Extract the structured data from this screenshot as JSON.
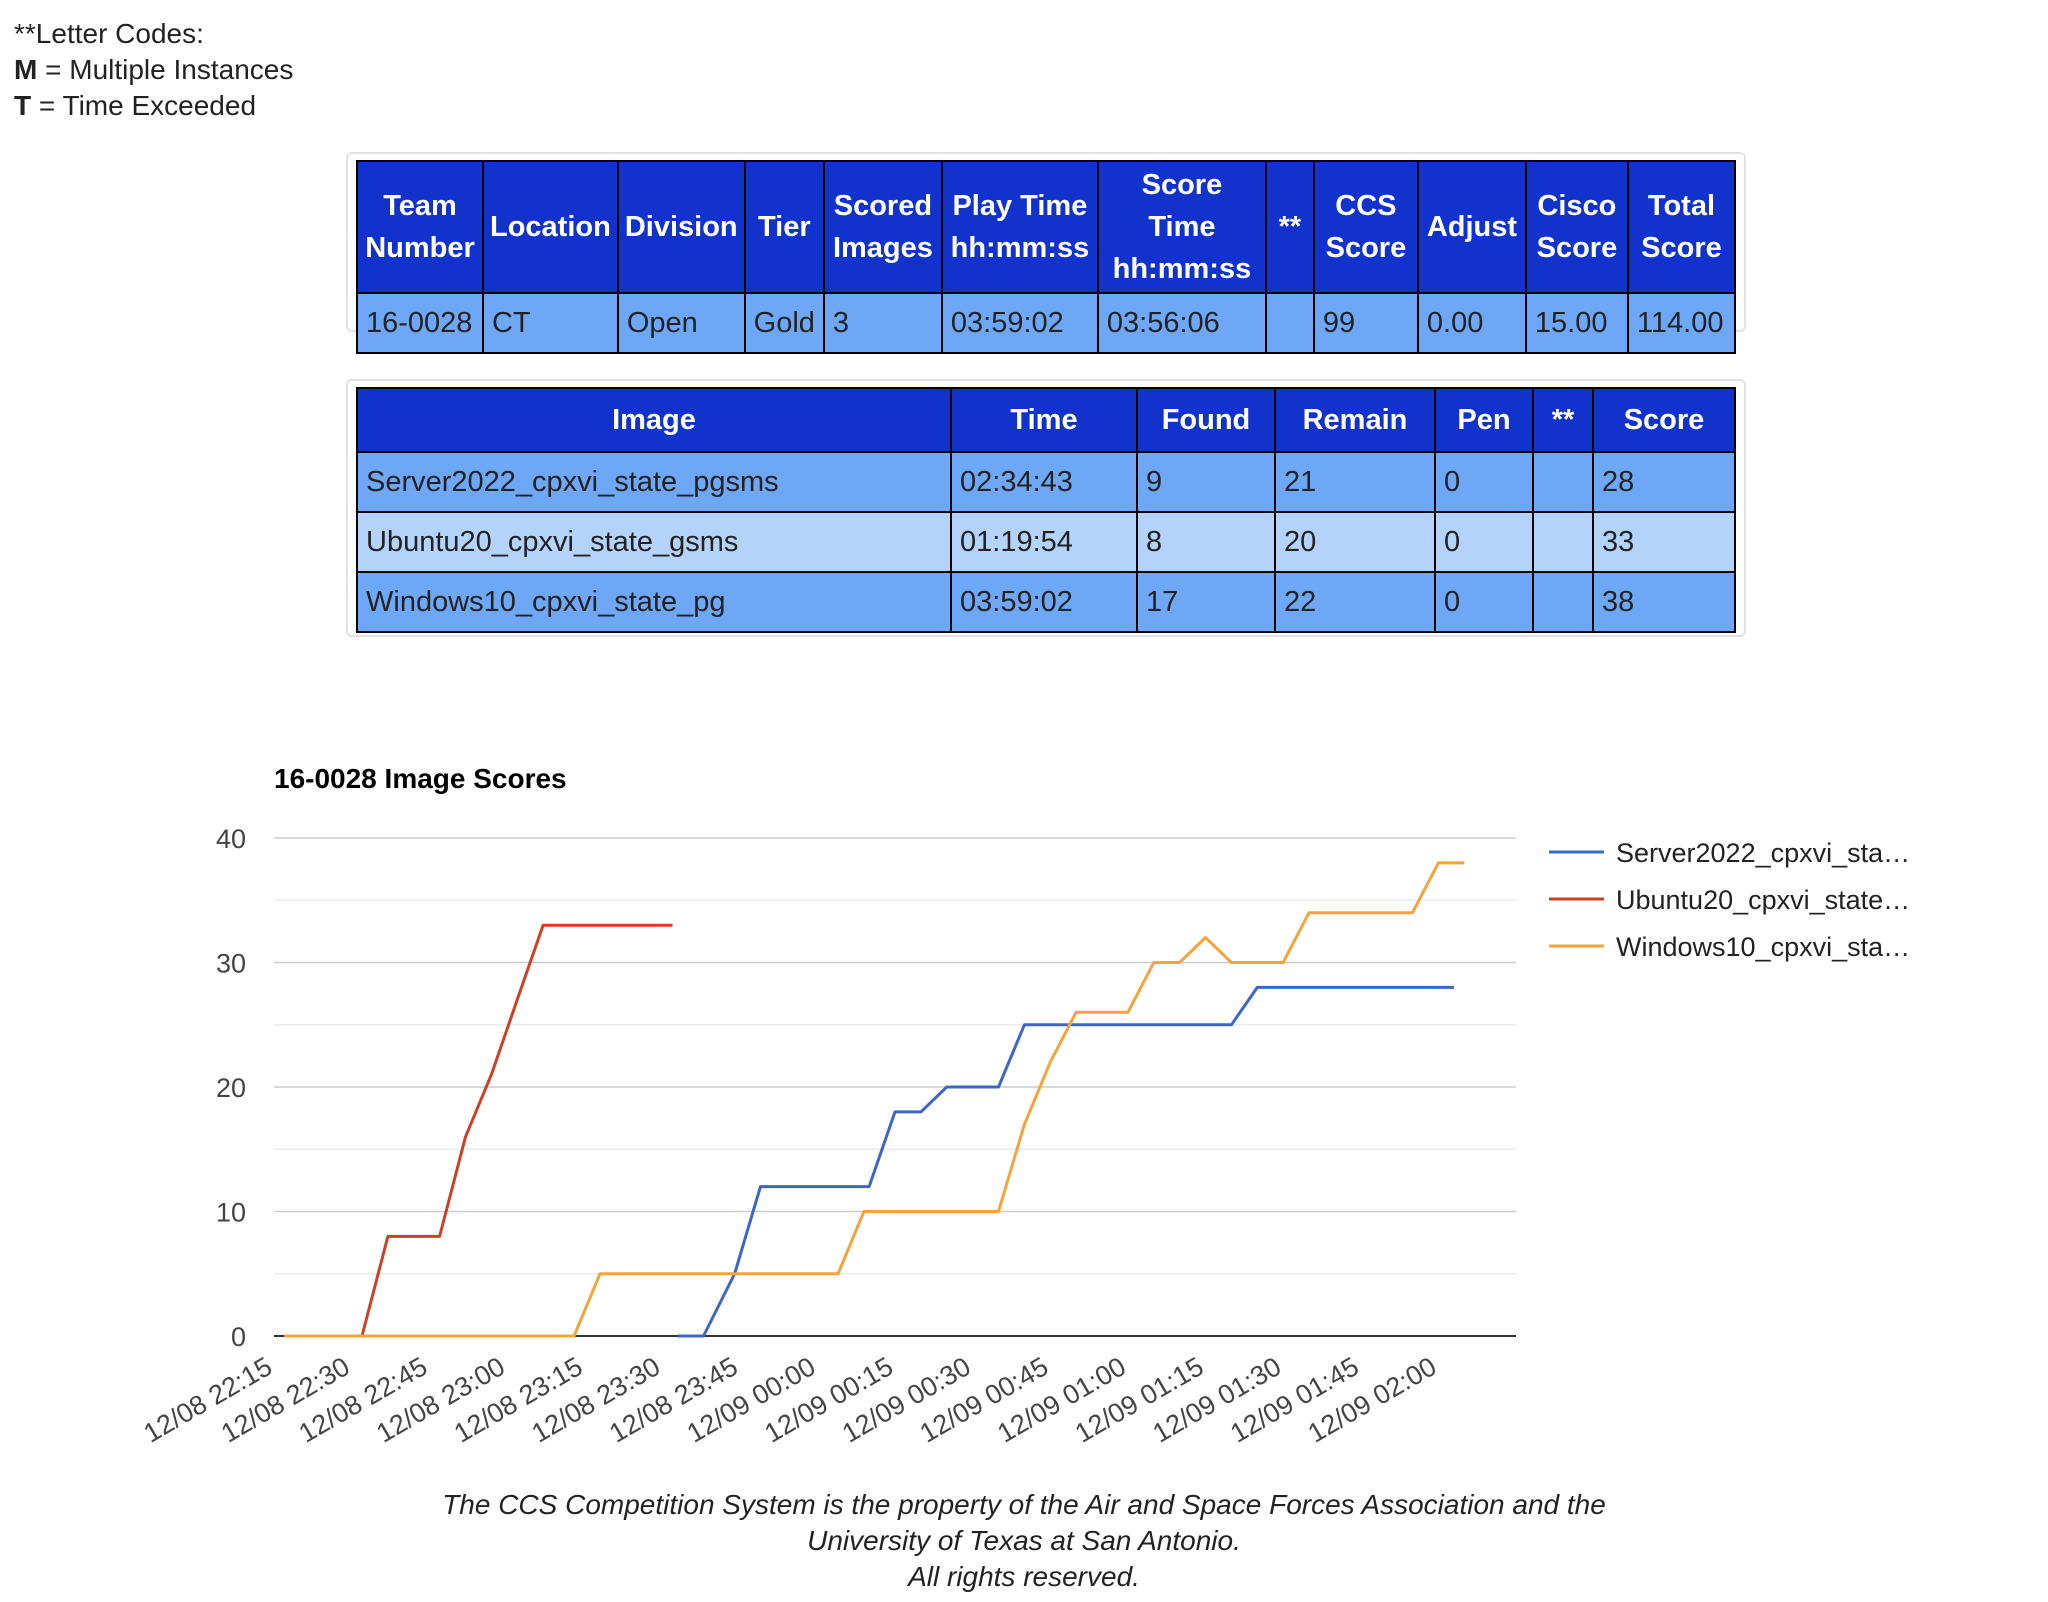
{
  "letter_codes": {
    "title": "**Letter Codes:",
    "codes": [
      {
        "letter": "M",
        "text": " = Multiple Instances"
      },
      {
        "letter": "T",
        "text": " = Time Exceeded"
      }
    ]
  },
  "summary": {
    "headers": [
      [
        "Team",
        "Number"
      ],
      [
        "Location"
      ],
      [
        "Division"
      ],
      [
        "Tier"
      ],
      [
        "Scored",
        "Images"
      ],
      [
        "Play Time",
        "hh:mm:ss"
      ],
      [
        "Score Time",
        "hh:mm:ss"
      ],
      [
        "**"
      ],
      [
        "CCS",
        "Score"
      ],
      [
        "Adjust"
      ],
      [
        "Cisco",
        "Score"
      ],
      [
        "Total",
        "Score"
      ]
    ],
    "row": [
      "16-0028",
      "CT",
      "Open",
      "Gold",
      "3",
      "03:59:02",
      "03:56:06",
      "",
      "99",
      "0.00",
      "15.00",
      "114.00"
    ]
  },
  "images_table": {
    "headers": [
      "Image",
      "Time",
      "Found",
      "Remain",
      "Pen",
      "**",
      "Score"
    ],
    "rows": [
      [
        "Server2022_cpxvi_state_pgsms",
        "02:34:43",
        "9",
        "21",
        "0",
        "",
        "28"
      ],
      [
        "Ubuntu20_cpxvi_state_gsms",
        "01:19:54",
        "8",
        "20",
        "0",
        "",
        "33"
      ],
      [
        "Windows10_cpxvi_state_pg",
        "03:59:02",
        "17",
        "22",
        "0",
        "",
        "38"
      ]
    ]
  },
  "chart_data": {
    "type": "line",
    "title": "16-0028 Image Scores",
    "xlabel": "",
    "ylabel": "",
    "ylim": [
      0,
      40
    ],
    "yticks": [
      0,
      10,
      20,
      30,
      40
    ],
    "grid": true,
    "legend_position": "right",
    "xticks": [
      "12/08 22:15",
      "12/08 22:30",
      "12/08 22:45",
      "12/08 23:00",
      "12/08 23:15",
      "12/08 23:30",
      "12/08 23:45",
      "12/09 00:00",
      "12/09 00:15",
      "12/09 00:30",
      "12/09 00:45",
      "12/09 01:00",
      "12/09 01:15",
      "12/09 01:30",
      "12/09 01:45",
      "12/09 02:00"
    ],
    "xlim": [
      "12/08 22:15",
      "12/09 02:15"
    ],
    "series": [
      {
        "name": "Server2022_cpxvi_sta…",
        "color": "#3d67c6",
        "points": [
          [
            "12/08 23:33",
            0
          ],
          [
            "12/08 23:38",
            0
          ],
          [
            "12/08 23:44",
            5
          ],
          [
            "12/08 23:49",
            12
          ],
          [
            "12/09 00:10",
            12
          ],
          [
            "12/09 00:15",
            18
          ],
          [
            "12/09 00:20",
            18
          ],
          [
            "12/09 00:25",
            20
          ],
          [
            "12/09 00:35",
            20
          ],
          [
            "12/09 00:40",
            25
          ],
          [
            "12/09 01:20",
            25
          ],
          [
            "12/09 01:25",
            28
          ],
          [
            "12/09 02:03",
            28
          ]
        ]
      },
      {
        "name": "Ubuntu20_cpxvi_state…",
        "color": "#cc4125",
        "points": [
          [
            "12/08 22:17",
            0
          ],
          [
            "12/08 22:32",
            0
          ],
          [
            "12/08 22:37",
            8
          ],
          [
            "12/08 22:47",
            8
          ],
          [
            "12/08 22:52",
            16
          ],
          [
            "12/08 22:57",
            21
          ],
          [
            "12/08 23:02",
            27
          ],
          [
            "12/08 23:07",
            33
          ],
          [
            "12/08 23:32",
            33
          ]
        ]
      },
      {
        "name": "Windows10_cpxvi_sta…",
        "color": "#f4a43b",
        "points": [
          [
            "12/08 22:17",
            0
          ],
          [
            "12/08 23:13",
            0
          ],
          [
            "12/08 23:18",
            5
          ],
          [
            "12/09 00:04",
            5
          ],
          [
            "12/09 00:09",
            10
          ],
          [
            "12/09 00:35",
            10
          ],
          [
            "12/09 00:40",
            17
          ],
          [
            "12/09 00:45",
            22
          ],
          [
            "12/09 00:50",
            26
          ],
          [
            "12/09 01:00",
            26
          ],
          [
            "12/09 01:05",
            30
          ],
          [
            "12/09 01:10",
            30
          ],
          [
            "12/09 01:15",
            32
          ],
          [
            "12/09 01:20",
            30
          ],
          [
            "12/09 01:30",
            30
          ],
          [
            "12/09 01:35",
            34
          ],
          [
            "12/09 01:55",
            34
          ],
          [
            "12/09 02:00",
            38
          ],
          [
            "12/09 02:05",
            38
          ]
        ]
      }
    ]
  },
  "footer": [
    "The CCS Competition System is the property of the Air and Space Forces Association and the",
    "University of Texas at San Antonio.",
    "All rights reserved."
  ]
}
